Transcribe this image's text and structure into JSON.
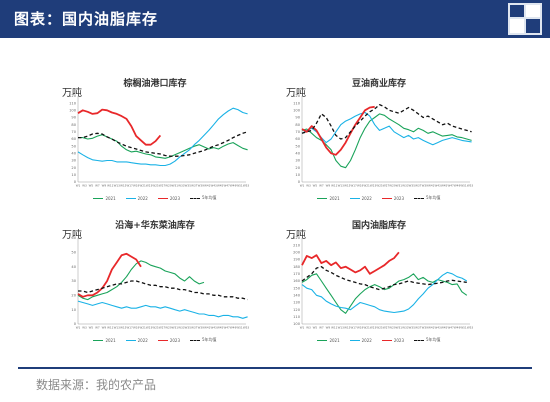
{
  "header": {
    "title": "图表：国内油脂库存"
  },
  "footer": {
    "source": "数据来源：我的农产品"
  },
  "colors": {
    "s2021": "#1aa35a",
    "s2022": "#1ab2e6",
    "s2023": "#e8282a",
    "avg": "#111111"
  },
  "chart_data": [
    {
      "type": "line",
      "title": "棕榈油港口库存",
      "unit": "万吨",
      "ylim": [
        0,
        120
      ],
      "yticks": [
        0,
        10,
        20,
        30,
        40,
        50,
        60,
        70,
        80,
        90,
        100,
        110,
        120
      ],
      "xticks": [
        "W1",
        "W3",
        "W5",
        "W7",
        "W9",
        "W11",
        "W13",
        "W15",
        "W17",
        "W19",
        "W21",
        "W23",
        "W25",
        "W27",
        "W29",
        "W31",
        "W33",
        "W35",
        "W37",
        "W39",
        "W41",
        "W43",
        "W45",
        "W47",
        "W49",
        "W51",
        "W53"
      ],
      "series": [
        {
          "name": "2021",
          "color": "#1aa35a",
          "dash": false,
          "values": [
            62,
            62,
            60,
            61,
            64,
            66,
            63,
            60,
            57,
            50,
            45,
            42,
            43,
            41,
            39,
            38,
            35,
            34,
            33,
            35,
            38,
            41,
            44,
            47,
            50,
            52,
            49,
            46,
            48,
            46,
            50,
            53,
            55,
            51,
            47,
            45
          ]
        },
        {
          "name": "2022",
          "color": "#1ab2e6",
          "dash": false,
          "values": [
            42,
            38,
            34,
            31,
            30,
            29,
            30,
            30,
            28,
            28,
            28,
            27,
            26,
            25,
            25,
            24,
            24,
            23,
            23,
            25,
            29,
            35,
            40,
            45,
            52,
            58,
            65,
            72,
            80,
            88,
            94,
            99,
            103,
            101,
            97,
            95
          ]
        },
        {
          "name": "2023",
          "color": "#e8282a",
          "dash": false,
          "values": [
            96,
            100,
            98,
            95,
            96,
            101,
            100,
            97,
            95,
            92,
            88,
            78,
            64,
            58,
            52,
            52,
            57,
            65
          ]
        },
        {
          "name": "5年均值",
          "color": "#111111",
          "dash": true,
          "values": [
            62,
            62,
            64,
            67,
            68,
            67,
            63,
            60,
            56,
            53,
            50,
            48,
            46,
            44,
            42,
            41,
            40,
            39,
            37,
            36,
            36,
            36,
            37,
            38,
            40,
            42,
            44,
            47,
            50,
            52,
            55,
            58,
            62,
            65,
            68,
            70
          ]
        }
      ]
    },
    {
      "type": "line",
      "title": "豆油商业库存",
      "unit": "万吨",
      "ylim": [
        0,
        120
      ],
      "yticks": [
        0,
        10,
        20,
        30,
        40,
        50,
        60,
        70,
        80,
        90,
        100,
        110,
        120
      ],
      "xticks": [
        "W1",
        "W3",
        "W5",
        "W7",
        "W9",
        "W11",
        "W13",
        "W15",
        "W17",
        "W19",
        "W21",
        "W23",
        "W25",
        "W27",
        "W29",
        "W31",
        "W33",
        "W35",
        "W37",
        "W39",
        "W41",
        "W43",
        "W45",
        "W47",
        "W49",
        "W51",
        "W53"
      ],
      "series": [
        {
          "name": "2021",
          "color": "#1aa35a",
          "dash": false,
          "values": [
            72,
            74,
            68,
            62,
            58,
            52,
            45,
            30,
            22,
            20,
            30,
            45,
            62,
            75,
            85,
            90,
            95,
            93,
            88,
            84,
            80,
            75,
            73,
            70,
            75,
            72,
            68,
            70,
            67,
            64,
            65,
            66,
            63,
            62,
            60,
            58
          ]
        },
        {
          "name": "2022",
          "color": "#1ab2e6",
          "dash": false,
          "values": [
            68,
            72,
            75,
            70,
            62,
            55,
            60,
            70,
            80,
            85,
            88,
            92,
            95,
            97,
            92,
            80,
            72,
            75,
            78,
            70,
            66,
            62,
            65,
            60,
            62,
            58,
            55,
            52,
            55,
            58,
            60,
            62,
            60,
            58,
            57,
            56
          ]
        },
        {
          "name": "2023",
          "color": "#e8282a",
          "dash": false,
          "values": [
            74,
            70,
            78,
            72,
            60,
            48,
            40,
            38,
            45,
            55,
            68,
            80,
            90,
            100,
            104,
            105
          ]
        },
        {
          "name": "5年均值",
          "color": "#111111",
          "dash": true,
          "values": [
            68,
            70,
            72,
            82,
            95,
            90,
            78,
            65,
            60,
            62,
            70,
            78,
            85,
            92,
            98,
            102,
            108,
            105,
            100,
            98,
            96,
            100,
            104,
            100,
            95,
            90,
            92,
            88,
            84,
            80,
            82,
            78,
            76,
            74,
            72,
            70
          ]
        }
      ]
    },
    {
      "type": "line",
      "title": "沿海+华东菜油库存",
      "unit": "万吨",
      "ylim": [
        0,
        60
      ],
      "yticks": [
        0,
        10,
        20,
        30,
        40,
        50,
        60
      ],
      "xticks": [
        "W1",
        "W3",
        "W5",
        "W7",
        "W9",
        "W11",
        "W13",
        "W15",
        "W17",
        "W19",
        "W21",
        "W23",
        "W25",
        "W27",
        "W29",
        "W31",
        "W33",
        "W35",
        "W37",
        "W39",
        "W41",
        "W43",
        "W45",
        "W47",
        "W49",
        "W51",
        "W53"
      ],
      "series": [
        {
          "name": "2021",
          "color": "#1aa35a",
          "dash": false,
          "values": [
            20,
            18,
            17,
            19,
            20,
            21,
            22,
            24,
            26,
            29,
            33,
            38,
            42,
            44,
            43,
            41,
            40,
            39,
            37,
            36,
            35,
            32,
            30,
            33,
            30,
            28,
            29
          ]
        },
        {
          "name": "2022",
          "color": "#1ab2e6",
          "dash": false,
          "values": [
            16,
            15,
            14,
            13,
            14,
            15,
            14,
            13,
            12,
            11,
            12,
            11,
            11,
            12,
            13,
            12,
            12,
            11,
            12,
            11,
            10,
            9,
            10,
            9,
            8,
            7,
            7,
            6,
            6,
            5,
            6,
            6,
            5,
            5,
            4,
            5
          ]
        },
        {
          "name": "2023",
          "color": "#e8282a",
          "dash": false,
          "values": [
            21,
            19,
            20,
            20,
            22,
            25,
            30,
            38,
            43,
            48,
            49,
            47,
            45,
            40
          ]
        },
        {
          "name": "5年均值",
          "color": "#111111",
          "dash": true,
          "values": [
            23,
            23,
            22,
            23,
            24,
            25,
            26,
            27,
            28,
            28,
            29,
            30,
            30,
            29,
            28,
            27,
            27,
            26,
            26,
            25,
            25,
            24,
            24,
            23,
            22,
            22,
            21,
            21,
            20,
            20,
            19,
            19,
            19,
            18,
            18,
            17
          ]
        }
      ]
    },
    {
      "type": "line",
      "title": "国内油脂库存",
      "unit": "万吨",
      "ylim": [
        100,
        220
      ],
      "yticks": [
        100,
        110,
        120,
        130,
        140,
        150,
        160,
        170,
        180,
        190,
        200,
        210,
        220
      ],
      "xticks": [
        "W1",
        "W3",
        "W5",
        "W7",
        "W9",
        "W11",
        "W13",
        "W15",
        "W17",
        "W19",
        "W21",
        "W23",
        "W25",
        "W27",
        "W29",
        "W31",
        "W33",
        "W35",
        "W37",
        "W39",
        "W41",
        "W43",
        "W45",
        "W47",
        "W49",
        "W51",
        "W53"
      ],
      "series": [
        {
          "name": "2021",
          "color": "#1aa35a",
          "dash": false,
          "values": [
            158,
            162,
            168,
            170,
            160,
            150,
            140,
            130,
            120,
            115,
            125,
            135,
            142,
            148,
            152,
            155,
            152,
            148,
            150,
            155,
            160,
            162,
            165,
            170,
            162,
            165,
            160,
            158,
            162,
            160,
            158,
            155,
            156,
            145,
            140
          ]
        },
        {
          "name": "2022",
          "color": "#1ab2e6",
          "dash": false,
          "values": [
            155,
            150,
            148,
            140,
            138,
            132,
            128,
            125,
            123,
            122,
            120,
            125,
            130,
            128,
            126,
            124,
            120,
            118,
            117,
            116,
            117,
            118,
            121,
            127,
            135,
            142,
            150,
            155,
            162,
            168,
            172,
            170,
            166,
            164,
            160
          ]
        },
        {
          "name": "2023",
          "color": "#e8282a",
          "dash": false,
          "values": [
            182,
            195,
            192,
            196,
            185,
            188,
            182,
            186,
            178,
            180,
            176,
            172,
            175,
            180,
            170,
            174,
            178,
            182,
            188,
            192,
            200
          ]
        },
        {
          "name": "5年均值",
          "color": "#111111",
          "dash": true,
          "values": [
            160,
            165,
            170,
            178,
            180,
            175,
            172,
            168,
            165,
            162,
            160,
            158,
            156,
            155,
            152,
            150,
            148,
            150,
            152,
            155,
            156,
            158,
            160,
            158,
            157,
            156,
            155,
            156,
            157,
            158,
            160,
            161,
            160,
            159,
            158
          ]
        }
      ]
    }
  ]
}
